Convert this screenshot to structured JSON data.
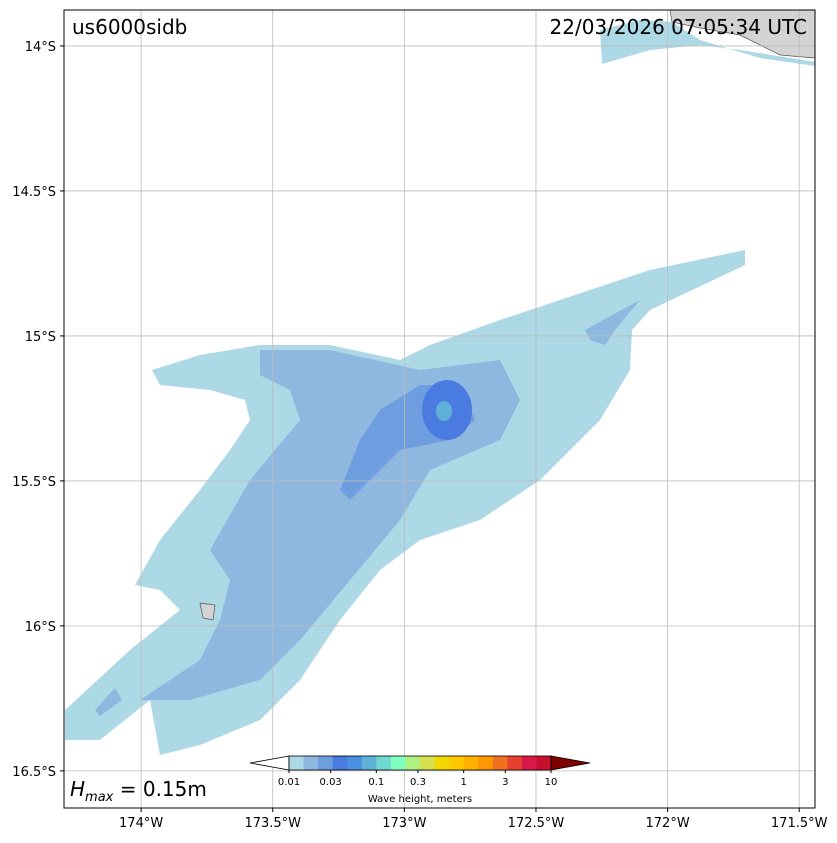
{
  "title": "us6000sidb",
  "timestamp": "22/03/2026 07:05:34 UTC",
  "hmax": {
    "symbol": "H",
    "subscript": "max",
    "text": " = 0.15m"
  },
  "map": {
    "xlim": [
      -174.293,
      -171.44
    ],
    "ylim": [
      -16.628,
      -13.876
    ],
    "xticks": [
      {
        "value": -174,
        "label": "174°W"
      },
      {
        "value": -173.5,
        "label": "173.5°W"
      },
      {
        "value": -173,
        "label": "173°W"
      },
      {
        "value": -172.5,
        "label": "172.5°W"
      },
      {
        "value": -172,
        "label": "172°W"
      },
      {
        "value": -171.5,
        "label": "171.5°W"
      }
    ],
    "yticks": [
      {
        "value": -14,
        "label": "14°S"
      },
      {
        "value": -14.5,
        "label": "14.5°S"
      },
      {
        "value": -15,
        "label": "15°S"
      },
      {
        "value": -15.5,
        "label": "15.5°S"
      },
      {
        "value": -16,
        "label": "16°S"
      },
      {
        "value": -16.5,
        "label": "16.5°S"
      }
    ],
    "grid": true
  },
  "colorbar": {
    "label": "Wave height, meters",
    "log": true,
    "lim": [
      0.01,
      10
    ],
    "ticks": [
      0.01,
      0.03,
      0.1,
      0.3,
      1,
      3,
      10
    ],
    "colors": [
      "#add8e6",
      "#8fb8e0",
      "#6f9ee0",
      "#4a7be0",
      "#4a90e0",
      "#5fb0d8",
      "#70d8d0",
      "#80ffc0",
      "#b0f080",
      "#d8e050",
      "#f0d800",
      "#ffc800",
      "#ffb000",
      "#ff9800",
      "#f07020",
      "#e84030",
      "#d81848",
      "#c8102e"
    ],
    "extend_min_color": "#ffffff",
    "extend_max_color": "#800000"
  }
}
